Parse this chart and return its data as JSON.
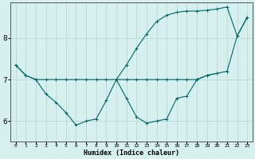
{
  "xlabel": "Humidex (Indice chaleur)",
  "bg_color": "#d6f0f0",
  "grid_color": "#c0dada",
  "line_color": "#006666",
  "xlim": [
    -0.5,
    23.5
  ],
  "ylim": [
    5.5,
    8.85
  ],
  "yticks": [
    6,
    7,
    8
  ],
  "xtick_labels": [
    "0",
    "1",
    "2",
    "3",
    "4",
    "5",
    "6",
    "7",
    "8",
    "9",
    "10",
    "11",
    "12",
    "13",
    "14",
    "15",
    "16",
    "17",
    "18",
    "19",
    "20",
    "21",
    "22",
    "23"
  ],
  "series": [
    [
      7.35,
      7.1,
      7.0,
      7.0,
      7.0,
      7.0,
      7.0,
      7.0,
      7.0,
      7.0,
      7.0,
      7.0,
      7.0,
      7.0,
      7.0,
      7.0,
      7.0,
      7.0,
      7.0,
      7.1,
      7.15,
      7.2,
      null,
      null
    ],
    [
      7.35,
      7.1,
      7.0,
      6.65,
      6.45,
      6.2,
      5.9,
      6.0,
      6.05,
      6.5,
      7.0,
      6.55,
      6.1,
      5.95,
      6.0,
      6.05,
      6.55,
      6.6,
      7.0,
      7.1,
      7.15,
      null,
      null,
      null
    ],
    [
      null,
      null,
      null,
      null,
      null,
      null,
      null,
      null,
      null,
      null,
      7.0,
      7.35,
      7.75,
      8.1,
      8.4,
      8.55,
      8.62,
      8.65,
      8.65,
      8.67,
      8.7,
      8.75,
      8.05,
      8.5
    ],
    [
      null,
      null,
      null,
      null,
      null,
      null,
      null,
      null,
      null,
      null,
      null,
      null,
      null,
      null,
      null,
      null,
      null,
      null,
      null,
      null,
      null,
      7.2,
      8.05,
      8.5
    ]
  ]
}
